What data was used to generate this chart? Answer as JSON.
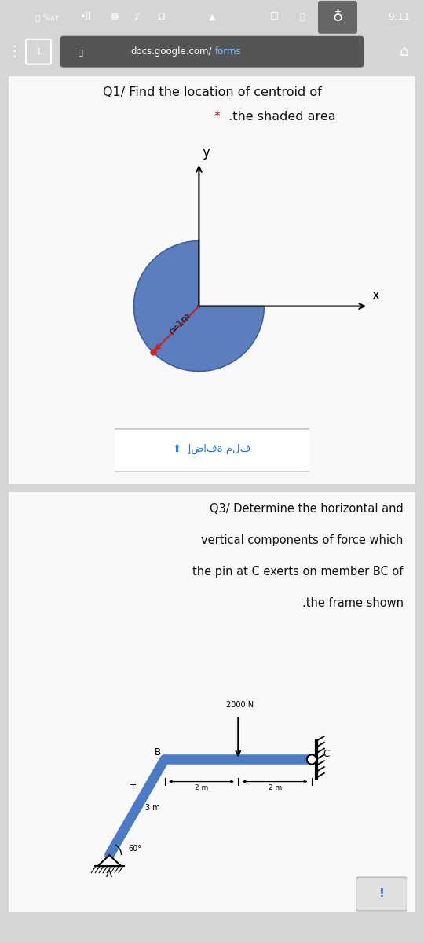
{
  "bg_color": "#d5d5d5",
  "card_color": "#f8f8f8",
  "status_bar_bg": "#363636",
  "url_bar_bg": "#404040",
  "status_time": "9:11",
  "url_text_plain": "docs.google.com/",
  "url_text_highlight": "forms",
  "q1_line1": "Q1/ Find the location of centroid of",
  "q1_line2_star": "*",
  "q1_line2_rest": " .the shaded area",
  "q1_star_color": "#cc0000",
  "circle_color": "#5b7fbe",
  "circle_edge_color": "#3a5f9f",
  "radius_label": "r=1m",
  "radius_line_color": "#cc2222",
  "upload_text": "⬆  إضافة ملف",
  "upload_color": "#1a73e8",
  "q3_line1": "Q3/ Determine the horizontal and",
  "q3_line2": "vertical components of force which",
  "q3_line3": "the pin at C exerts on member BC of",
  "q3_line4": ".the frame shown",
  "frame_bg": "#f5f0d8",
  "beam_color": "#4a7bc4",
  "force_label": "2000 N",
  "dim_3m": "3 m",
  "dim_2m_1": "2 m",
  "dim_2m_2": "2 m",
  "angle_label": "60°",
  "exclamation_color": "#1a73e8",
  "exclamation_bg": "#e8e8e8"
}
